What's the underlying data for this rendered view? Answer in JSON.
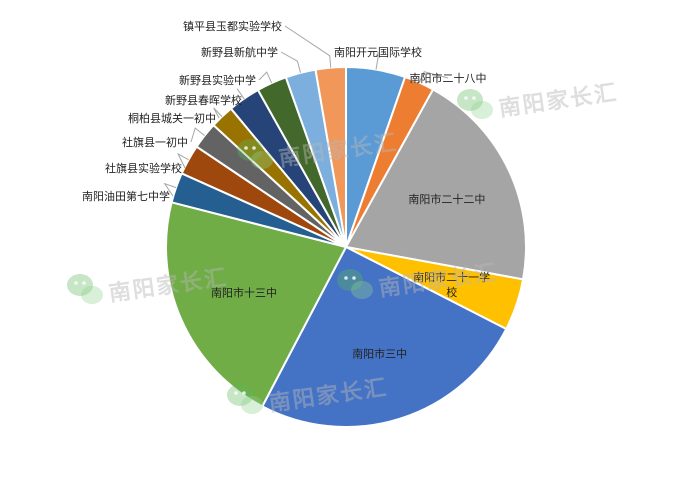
{
  "chart_data": {
    "type": "pie",
    "title": "",
    "legend": "none",
    "categories": [
      "南阳开元国际学校",
      "南阳市二十八中",
      "南阳市二十二中",
      "南阳市二十一学校",
      "南阳市三中",
      "南阳市十三中",
      "南阳油田第七中学",
      "社旗县实验学校",
      "社旗县一初中",
      "桐柏县城关一初中",
      "新野县春晖学校",
      "新野县实验中学",
      "新野县新航中学",
      "镇平县玉都实验学校"
    ],
    "values": [
      5.5,
      2.8,
      20.5,
      4.8,
      26.0,
      22.0,
      2.8,
      2.8,
      2.5,
      2.2,
      3.0,
      2.8,
      2.8,
      2.8
    ],
    "colors": [
      "#5b9bd5",
      "#ed7d31",
      "#a5a5a5",
      "#ffc000",
      "#4472c4",
      "#70ad47",
      "#255e91",
      "#9e480e",
      "#636363",
      "#997300",
      "#264478",
      "#43682b",
      "#7cafdd",
      "#f1975a"
    ],
    "label_positions": [
      "outside",
      "outside",
      "inside",
      "inside",
      "inside",
      "inside",
      "outside",
      "outside",
      "outside",
      "outside",
      "outside",
      "outside",
      "outside",
      "outside"
    ]
  },
  "watermark": {
    "text": "南阳家长汇",
    "icon": "wechat-icon"
  }
}
